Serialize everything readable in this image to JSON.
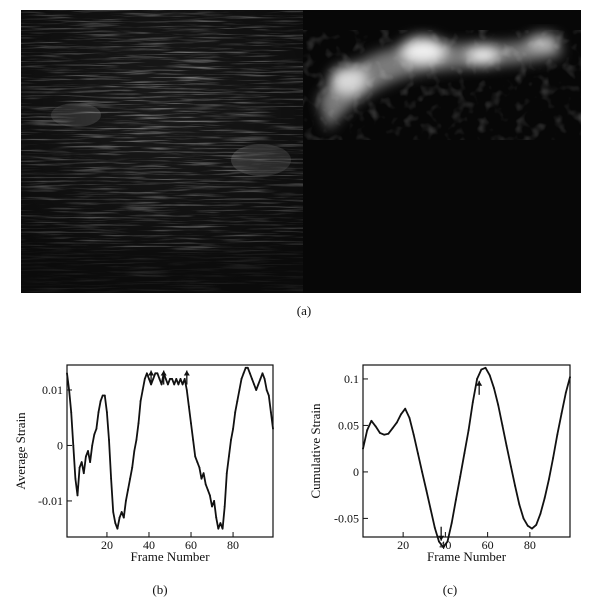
{
  "figure": {
    "image_panel": {
      "left_label": "B-mode ultrasound image",
      "right_label": "strain image",
      "caption": "(a)"
    },
    "captions": {
      "b": "(b)",
      "c": "(c)"
    }
  },
  "chart_data": [
    {
      "type": "line",
      "title": "",
      "xlabel": "Frame Number",
      "ylabel": "Average Strain",
      "xlim": [
        1,
        99
      ],
      "ylim": [
        -0.0165,
        0.0145
      ],
      "xticks": [
        20,
        40,
        60,
        80
      ],
      "yticks": [
        0.01,
        0,
        -0.01
      ],
      "ytick_labels": [
        "0.01",
        "0",
        "-0.01"
      ],
      "grid": false,
      "annotations": [
        "arrow at frame 41",
        "arrow at frame 47",
        "arrow at frame 58"
      ],
      "series": [
        {
          "x": [
            1,
            2,
            3,
            4,
            5,
            6,
            7,
            8,
            9,
            10,
            11,
            12,
            13,
            14,
            15,
            16,
            17,
            18,
            19,
            20,
            21,
            22,
            23,
            24,
            25,
            26,
            27,
            28,
            29,
            30,
            31,
            32,
            33,
            34,
            35,
            36,
            37,
            38,
            39,
            40,
            41,
            42,
            43,
            44,
            45,
            46,
            47,
            48,
            49,
            50,
            51,
            52,
            53,
            54,
            55,
            56,
            57,
            58,
            59,
            60,
            61,
            62,
            63,
            64,
            65,
            66,
            67,
            68,
            69,
            70,
            71,
            72,
            73,
            74,
            75,
            76,
            77,
            78,
            79,
            80,
            81,
            82,
            83,
            84,
            85,
            86,
            87,
            88,
            89,
            90,
            91,
            92,
            93,
            94,
            95,
            96,
            97,
            98,
            99
          ],
          "y": [
            0.013,
            0.01,
            0.006,
            0.0,
            -0.006,
            -0.009,
            -0.004,
            -0.003,
            -0.005,
            -0.002,
            -0.001,
            -0.003,
            0.0,
            0.002,
            0.003,
            0.006,
            0.008,
            0.009,
            0.009,
            0.006,
            0.001,
            -0.006,
            -0.012,
            -0.014,
            -0.015,
            -0.013,
            -0.012,
            -0.013,
            -0.01,
            -0.008,
            -0.006,
            -0.004,
            -0.001,
            0.001,
            0.004,
            0.008,
            0.01,
            0.012,
            0.013,
            0.012,
            0.011,
            0.012,
            0.013,
            0.013,
            0.012,
            0.011,
            0.013,
            0.012,
            0.011,
            0.012,
            0.012,
            0.011,
            0.012,
            0.011,
            0.012,
            0.011,
            0.012,
            0.01,
            0.007,
            0.004,
            0.001,
            -0.002,
            -0.003,
            -0.004,
            -0.006,
            -0.005,
            -0.007,
            -0.008,
            -0.009,
            -0.011,
            -0.01,
            -0.013,
            -0.015,
            -0.014,
            -0.015,
            -0.011,
            -0.005,
            -0.002,
            0.001,
            0.003,
            0.006,
            0.008,
            0.01,
            0.012,
            0.013,
            0.014,
            0.014,
            0.013,
            0.012,
            0.011,
            0.01,
            0.011,
            0.012,
            0.013,
            0.012,
            0.01,
            0.009,
            0.006,
            0.003
          ]
        }
      ]
    },
    {
      "type": "line",
      "title": "",
      "xlabel": "Frame Number",
      "ylabel": "Cumulative Strain",
      "xlim": [
        1,
        99
      ],
      "ylim": [
        -0.07,
        0.115
      ],
      "xticks": [
        20,
        40,
        60,
        80
      ],
      "yticks": [
        0.1,
        0.05,
        0,
        -0.05
      ],
      "ytick_labels": [
        "0.1",
        "0.05",
        "0",
        "-0.05"
      ],
      "grid": false,
      "annotations": [
        "arrow at frame 38",
        "arrow at frame 56"
      ],
      "series": [
        {
          "x": [
            1,
            3,
            5,
            7,
            9,
            11,
            13,
            15,
            17,
            19,
            21,
            23,
            25,
            27,
            29,
            31,
            33,
            35,
            37,
            39,
            41,
            43,
            45,
            47,
            49,
            51,
            53,
            55,
            57,
            59,
            61,
            63,
            65,
            67,
            69,
            71,
            73,
            75,
            77,
            79,
            81,
            83,
            85,
            87,
            89,
            91,
            93,
            95,
            97,
            99
          ],
          "y": [
            0.025,
            0.045,
            0.055,
            0.049,
            0.042,
            0.04,
            0.041,
            0.047,
            0.053,
            0.062,
            0.068,
            0.058,
            0.04,
            0.02,
            0.0,
            -0.02,
            -0.04,
            -0.06,
            -0.075,
            -0.081,
            -0.075,
            -0.055,
            -0.03,
            -0.005,
            0.02,
            0.045,
            0.075,
            0.1,
            0.11,
            0.112,
            0.104,
            0.09,
            0.072,
            0.05,
            0.028,
            0.006,
            -0.015,
            -0.035,
            -0.05,
            -0.058,
            -0.061,
            -0.057,
            -0.045,
            -0.028,
            -0.008,
            0.015,
            0.04,
            0.063,
            0.085,
            0.102
          ]
        }
      ]
    }
  ]
}
